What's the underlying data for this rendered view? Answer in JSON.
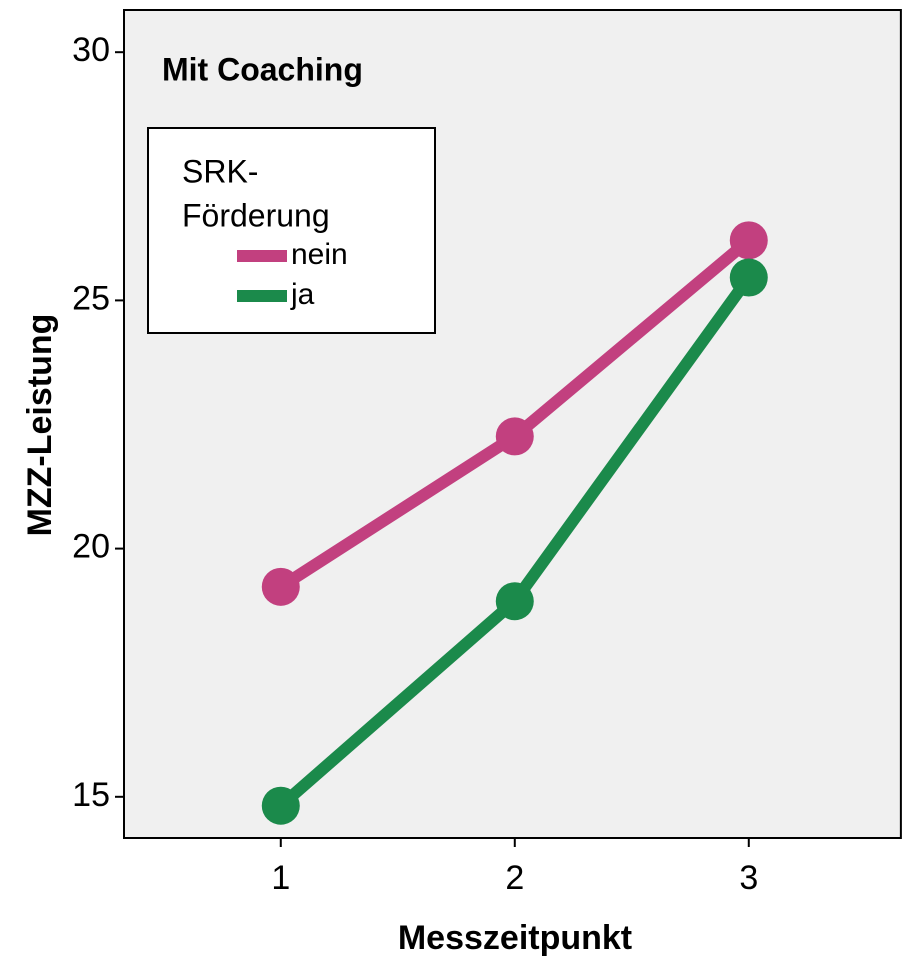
{
  "chart_data": {
    "type": "line",
    "title": "Mit Coaching",
    "x_label": "Messzeitpunkt",
    "y_label": "MZZ-Leistung",
    "legend_title": [
      "SRK-",
      "Förderung"
    ],
    "x": [
      1,
      2,
      3
    ],
    "series": [
      {
        "name": "nein",
        "color": "#c2407f",
        "values": [
          19.23,
          22.26,
          26.21
        ]
      },
      {
        "name": "ja",
        "color": "#1b8a4b",
        "values": [
          14.82,
          18.94,
          25.46
        ]
      }
    ],
    "xlim": [
      0.33,
      3.65
    ],
    "xticks": [
      1,
      2,
      3
    ],
    "ylim": [
      14.17,
      30.85
    ],
    "yticks": [
      15,
      20,
      25,
      30
    ],
    "background": "#f0f0f0",
    "legend": "upper left"
  }
}
